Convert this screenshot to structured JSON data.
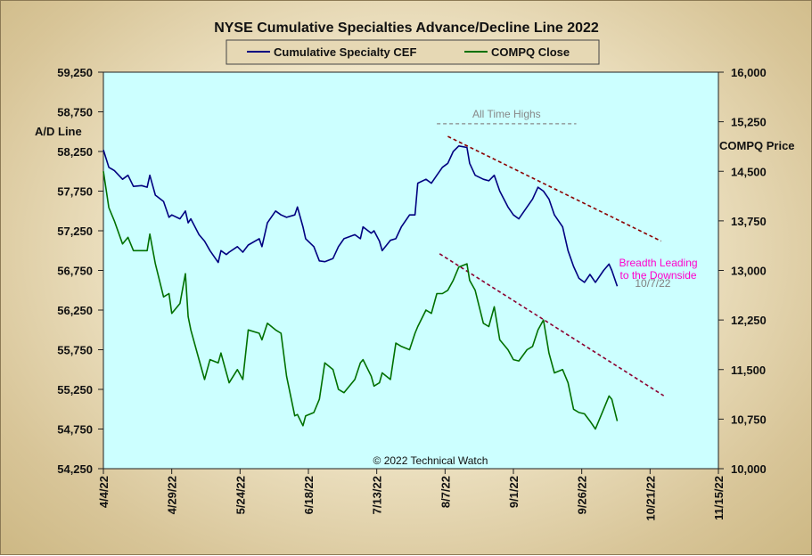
{
  "chart_data": {
    "type": "line",
    "title": "NYSE Cumulative Specialties Advance/Decline Line 2022",
    "ylabel_left": "A/D Line",
    "ylabel_right": "COMPQ Price",
    "copyright": "© 2022 Technical Watch",
    "legend_position": "top-center",
    "grid": false,
    "plot_background": "#ccffff",
    "x_range": [
      "2022-04-04",
      "2022-11-15"
    ],
    "x_tick_labels": [
      "4/4/22",
      "4/29/22",
      "5/24/22",
      "6/18/22",
      "7/13/22",
      "8/7/22",
      "9/1/22",
      "9/26/22",
      "10/21/22",
      "11/15/22"
    ],
    "x_tick_dates": [
      "2022-04-04",
      "2022-04-29",
      "2022-05-24",
      "2022-06-18",
      "2022-07-13",
      "2022-08-07",
      "2022-09-01",
      "2022-09-26",
      "2022-10-21",
      "2022-11-15"
    ],
    "y_left_range": [
      54250,
      59250
    ],
    "y_left_ticks": [
      "54,250",
      "54,750",
      "55,250",
      "55,750",
      "56,250",
      "56,750",
      "57,250",
      "57,750",
      "58,250",
      "58,750",
      "59,250"
    ],
    "y_right_range": [
      10000,
      16000
    ],
    "y_right_ticks": [
      "10,000",
      "10,750",
      "11,500",
      "12,250",
      "13,000",
      "13,750",
      "14,500",
      "15,250",
      "16,000"
    ],
    "series": [
      {
        "name": "Cumulative Specialty CEF",
        "axis": "left",
        "color": "#000080",
        "points": [
          [
            "2022-04-04",
            58270
          ],
          [
            "2022-04-06",
            58050
          ],
          [
            "2022-04-08",
            58010
          ],
          [
            "2022-04-11",
            57900
          ],
          [
            "2022-04-13",
            57950
          ],
          [
            "2022-04-15",
            57810
          ],
          [
            "2022-04-18",
            57820
          ],
          [
            "2022-04-20",
            57800
          ],
          [
            "2022-04-21",
            57950
          ],
          [
            "2022-04-23",
            57700
          ],
          [
            "2022-04-26",
            57620
          ],
          [
            "2022-04-28",
            57420
          ],
          [
            "2022-04-29",
            57450
          ],
          [
            "2022-05-02",
            57400
          ],
          [
            "2022-05-04",
            57500
          ],
          [
            "2022-05-05",
            57350
          ],
          [
            "2022-05-06",
            57400
          ],
          [
            "2022-05-09",
            57200
          ],
          [
            "2022-05-11",
            57120
          ],
          [
            "2022-05-13",
            57000
          ],
          [
            "2022-05-16",
            56850
          ],
          [
            "2022-05-17",
            57000
          ],
          [
            "2022-05-19",
            56950
          ],
          [
            "2022-05-20",
            56980
          ],
          [
            "2022-05-23",
            57050
          ],
          [
            "2022-05-25",
            56980
          ],
          [
            "2022-05-27",
            57070
          ],
          [
            "2022-05-31",
            57150
          ],
          [
            "2022-06-01",
            57050
          ],
          [
            "2022-06-03",
            57350
          ],
          [
            "2022-06-06",
            57500
          ],
          [
            "2022-06-08",
            57450
          ],
          [
            "2022-06-10",
            57420
          ],
          [
            "2022-06-13",
            57450
          ],
          [
            "2022-06-14",
            57550
          ],
          [
            "2022-06-16",
            57300
          ],
          [
            "2022-06-17",
            57150
          ],
          [
            "2022-06-20",
            57050
          ],
          [
            "2022-06-22",
            56870
          ],
          [
            "2022-06-24",
            56860
          ],
          [
            "2022-06-27",
            56900
          ],
          [
            "2022-06-29",
            57050
          ],
          [
            "2022-07-01",
            57150
          ],
          [
            "2022-07-05",
            57200
          ],
          [
            "2022-07-07",
            57150
          ],
          [
            "2022-07-08",
            57300
          ],
          [
            "2022-07-11",
            57220
          ],
          [
            "2022-07-12",
            57250
          ],
          [
            "2022-07-14",
            57120
          ],
          [
            "2022-07-15",
            57000
          ],
          [
            "2022-07-18",
            57130
          ],
          [
            "2022-07-20",
            57150
          ],
          [
            "2022-07-22",
            57300
          ],
          [
            "2022-07-25",
            57450
          ],
          [
            "2022-07-27",
            57450
          ],
          [
            "2022-07-28",
            57850
          ],
          [
            "2022-07-31",
            57900
          ],
          [
            "2022-08-02",
            57850
          ],
          [
            "2022-08-04",
            57950
          ],
          [
            "2022-08-06",
            58050
          ],
          [
            "2022-08-08",
            58100
          ],
          [
            "2022-08-10",
            58250
          ],
          [
            "2022-08-12",
            58320
          ],
          [
            "2022-08-15",
            58300
          ],
          [
            "2022-08-16",
            58100
          ],
          [
            "2022-08-18",
            57950
          ],
          [
            "2022-08-21",
            57900
          ],
          [
            "2022-08-23",
            57880
          ],
          [
            "2022-08-25",
            57950
          ],
          [
            "2022-08-27",
            57750
          ],
          [
            "2022-08-30",
            57550
          ],
          [
            "2022-09-01",
            57450
          ],
          [
            "2022-09-03",
            57400
          ],
          [
            "2022-09-06",
            57550
          ],
          [
            "2022-09-08",
            57650
          ],
          [
            "2022-09-10",
            57800
          ],
          [
            "2022-09-12",
            57750
          ],
          [
            "2022-09-14",
            57650
          ],
          [
            "2022-09-16",
            57450
          ],
          [
            "2022-09-19",
            57300
          ],
          [
            "2022-09-21",
            57000
          ],
          [
            "2022-09-23",
            56800
          ],
          [
            "2022-09-25",
            56650
          ],
          [
            "2022-09-27",
            56600
          ],
          [
            "2022-09-29",
            56700
          ],
          [
            "2022-10-01",
            56600
          ],
          [
            "2022-10-04",
            56750
          ],
          [
            "2022-10-06",
            56830
          ],
          [
            "2022-10-07",
            56750
          ],
          [
            "2022-10-09",
            56550
          ]
        ]
      },
      {
        "name": "COMPQ Close",
        "axis": "right",
        "color": "#007000",
        "points": [
          [
            "2022-04-04",
            14500
          ],
          [
            "2022-04-06",
            13950
          ],
          [
            "2022-04-08",
            13750
          ],
          [
            "2022-04-11",
            13400
          ],
          [
            "2022-04-13",
            13500
          ],
          [
            "2022-04-15",
            13300
          ],
          [
            "2022-04-18",
            13300
          ],
          [
            "2022-04-20",
            13300
          ],
          [
            "2022-04-21",
            13550
          ],
          [
            "2022-04-23",
            13100
          ],
          [
            "2022-04-26",
            12600
          ],
          [
            "2022-04-28",
            12650
          ],
          [
            "2022-04-29",
            12350
          ],
          [
            "2022-05-02",
            12500
          ],
          [
            "2022-05-04",
            12950
          ],
          [
            "2022-05-05",
            12300
          ],
          [
            "2022-05-06",
            12100
          ],
          [
            "2022-05-09",
            11650
          ],
          [
            "2022-05-11",
            11350
          ],
          [
            "2022-05-13",
            11650
          ],
          [
            "2022-05-16",
            11600
          ],
          [
            "2022-05-17",
            11750
          ],
          [
            "2022-05-19",
            11450
          ],
          [
            "2022-05-20",
            11300
          ],
          [
            "2022-05-23",
            11500
          ],
          [
            "2022-05-25",
            11350
          ],
          [
            "2022-05-27",
            12100
          ],
          [
            "2022-05-31",
            12050
          ],
          [
            "2022-06-01",
            11950
          ],
          [
            "2022-06-03",
            12200
          ],
          [
            "2022-06-06",
            12100
          ],
          [
            "2022-06-08",
            12050
          ],
          [
            "2022-06-10",
            11400
          ],
          [
            "2022-06-13",
            10800
          ],
          [
            "2022-06-14",
            10820
          ],
          [
            "2022-06-16",
            10650
          ],
          [
            "2022-06-17",
            10800
          ],
          [
            "2022-06-20",
            10850
          ],
          [
            "2022-06-22",
            11050
          ],
          [
            "2022-06-24",
            11600
          ],
          [
            "2022-06-27",
            11500
          ],
          [
            "2022-06-29",
            11200
          ],
          [
            "2022-07-01",
            11150
          ],
          [
            "2022-07-05",
            11350
          ],
          [
            "2022-07-07",
            11600
          ],
          [
            "2022-07-08",
            11650
          ],
          [
            "2022-07-11",
            11400
          ],
          [
            "2022-07-12",
            11250
          ],
          [
            "2022-07-14",
            11300
          ],
          [
            "2022-07-15",
            11450
          ],
          [
            "2022-07-18",
            11350
          ],
          [
            "2022-07-20",
            11900
          ],
          [
            "2022-07-22",
            11850
          ],
          [
            "2022-07-25",
            11800
          ],
          [
            "2022-07-27",
            12050
          ],
          [
            "2022-07-28",
            12150
          ],
          [
            "2022-07-31",
            12400
          ],
          [
            "2022-08-02",
            12350
          ],
          [
            "2022-08-04",
            12650
          ],
          [
            "2022-08-06",
            12650
          ],
          [
            "2022-08-08",
            12700
          ],
          [
            "2022-08-10",
            12850
          ],
          [
            "2022-08-12",
            13050
          ],
          [
            "2022-08-15",
            13100
          ],
          [
            "2022-08-16",
            12850
          ],
          [
            "2022-08-18",
            12700
          ],
          [
            "2022-08-21",
            12200
          ],
          [
            "2022-08-23",
            12150
          ],
          [
            "2022-08-25",
            12450
          ],
          [
            "2022-08-27",
            11950
          ],
          [
            "2022-08-30",
            11800
          ],
          [
            "2022-09-01",
            11650
          ],
          [
            "2022-09-03",
            11630
          ],
          [
            "2022-09-06",
            11800
          ],
          [
            "2022-09-08",
            11850
          ],
          [
            "2022-09-10",
            12100
          ],
          [
            "2022-09-12",
            12250
          ],
          [
            "2022-09-14",
            11750
          ],
          [
            "2022-09-16",
            11450
          ],
          [
            "2022-09-19",
            11500
          ],
          [
            "2022-09-21",
            11300
          ],
          [
            "2022-09-23",
            10900
          ],
          [
            "2022-09-25",
            10850
          ],
          [
            "2022-09-27",
            10830
          ],
          [
            "2022-09-29",
            10720
          ],
          [
            "2022-10-01",
            10600
          ],
          [
            "2022-10-04",
            10900
          ],
          [
            "2022-10-06",
            11100
          ],
          [
            "2022-10-07",
            11050
          ],
          [
            "2022-10-09",
            10720
          ]
        ]
      }
    ],
    "annotations": [
      {
        "label": "All Time Highs",
        "axis": "left",
        "kind": "dashed-hline",
        "color": "#888888",
        "x1": "2022-08-04",
        "x2": "2022-09-24",
        "y": 58600
      },
      {
        "kind": "dashed-trendline",
        "axis": "left",
        "color": "#8b0000",
        "x1": "2022-08-08",
        "y1": 58440,
        "x2": "2022-10-25",
        "y2": 57120
      },
      {
        "kind": "dashed-trendline",
        "axis": "left",
        "color": "#8b0030",
        "x1": "2022-08-05",
        "y1": 56960,
        "x2": "2022-10-26",
        "y2": 55170
      },
      {
        "label_lines": [
          "Breadth Leading",
          "to the Downside"
        ],
        "color": "#ff00cc",
        "x": "2022-10-24",
        "y": 56800
      },
      {
        "label": "10/7/22",
        "color": "#808080",
        "x": "2022-10-22",
        "y": 56540
      }
    ]
  }
}
